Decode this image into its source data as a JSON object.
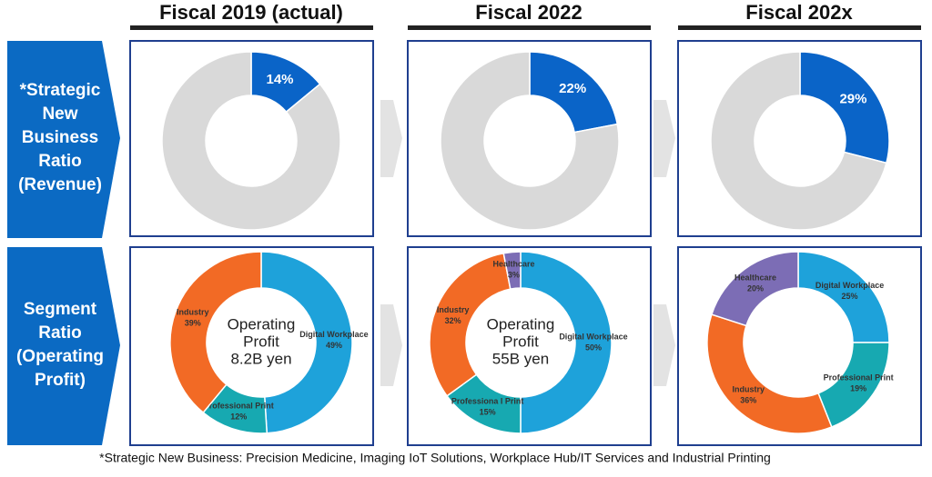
{
  "columns": [
    "Fiscal 2019 (actual)",
    "Fiscal 2022",
    "Fiscal 202x"
  ],
  "row_labels": [
    [
      "*Strategic",
      "New",
      "Business",
      "Ratio",
      "(Revenue)"
    ],
    [
      "Segment",
      "Ratio",
      "(Operating",
      "Profit)"
    ]
  ],
  "footnote": "*Strategic New Business: Precision Medicine, Imaging IoT Solutions, Workplace Hub/IT Services and Industrial Printing",
  "chart_data": [
    {
      "type": "pie",
      "categories": [
        null,
        null
      ],
      "values": [
        14,
        86
      ],
      "value_labels": [
        "14%",
        null
      ],
      "colors": [
        "#0a64c8",
        "#d9d9d9"
      ]
    },
    {
      "type": "pie",
      "categories": [
        null,
        null
      ],
      "values": [
        22,
        78
      ],
      "value_labels": [
        "22%",
        null
      ],
      "colors": [
        "#0a64c8",
        "#d9d9d9"
      ]
    },
    {
      "type": "pie",
      "categories": [
        null,
        null
      ],
      "values": [
        29,
        71
      ],
      "value_labels": [
        "29%",
        null
      ],
      "colors": [
        "#0a64c8",
        "#d9d9d9"
      ]
    },
    {
      "type": "pie",
      "categories": [
        "Digital Workplace",
        "Professional Print",
        "Industry"
      ],
      "values": [
        49,
        12,
        39
      ],
      "value_labels": [
        "49%",
        "12%",
        "39%"
      ],
      "colors": [
        "#1ea2da",
        "#17a9b1",
        "#f26a25"
      ],
      "center_text": [
        "Operating",
        "Profit",
        "8.2B yen"
      ]
    },
    {
      "type": "pie",
      "categories": [
        "Digital Workplace",
        "Professiona l Print",
        "Industry",
        "Healthcare"
      ],
      "values": [
        50,
        15,
        32,
        3
      ],
      "value_labels": [
        "50%",
        "15%",
        "32%",
        "3%"
      ],
      "colors": [
        "#1ea2da",
        "#17a9b1",
        "#f26a25",
        "#7c6db5"
      ],
      "center_text": [
        "Operating",
        "Profit",
        "55B yen"
      ]
    },
    {
      "type": "pie",
      "categories": [
        "Digital Workplace",
        "Professional Print",
        "Industry",
        "Healthcare"
      ],
      "values": [
        25,
        19,
        36,
        20
      ],
      "value_labels": [
        "25%",
        "19%",
        "36%",
        "20%"
      ],
      "colors": [
        "#1ea2da",
        "#17a9b1",
        "#f26a25",
        "#7c6db5"
      ]
    }
  ]
}
